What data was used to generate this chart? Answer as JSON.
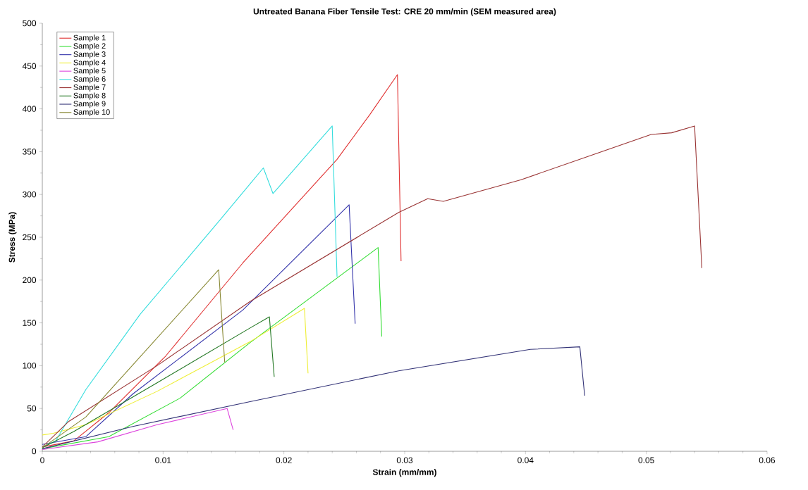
{
  "chart_data": {
    "type": "line",
    "title": "Untreated Banana Fiber Tensile Test: CRE 20 mm/min (SEM measured area)",
    "xlabel": "Strain (mm/mm)",
    "ylabel": "Stress (MPa)",
    "xlim": [
      0,
      0.06
    ],
    "ylim": [
      0,
      500
    ],
    "xticks": [
      0,
      0.01,
      0.02,
      0.03,
      0.04,
      0.05,
      0.06
    ],
    "yticks": [
      0,
      50,
      100,
      150,
      200,
      250,
      300,
      350,
      400,
      450,
      500
    ],
    "legend": "top left",
    "grid": false,
    "marker": "none",
    "line_style": "solid",
    "series": [
      {
        "name": "Sample 1",
        "color": "#e03030",
        "x": [
          0,
          0.0026,
          0.0055,
          0.0102,
          0.0166,
          0.0244,
          0.0271,
          0.0294,
          0.0297
        ],
        "values": [
          5,
          12,
          45,
          111,
          220,
          341,
          393,
          440,
          222
        ]
      },
      {
        "name": "Sample 2",
        "color": "#33dd33",
        "x": [
          0,
          0.0055,
          0.0114,
          0.0172,
          0.0278,
          0.0281
        ],
        "values": [
          3,
          17,
          62,
          127,
          238,
          134
        ]
      },
      {
        "name": "Sample 3",
        "color": "#3333aa",
        "x": [
          0,
          0.0036,
          0.0075,
          0.0166,
          0.0254,
          0.0259
        ],
        "values": [
          8,
          17,
          67,
          165,
          288,
          149
        ]
      },
      {
        "name": "Sample 4",
        "color": "#eeee33",
        "x": [
          0,
          0.0009,
          0.0036,
          0.0095,
          0.0172,
          0.0217,
          0.022
        ],
        "values": [
          19,
          21,
          31,
          70,
          128,
          167,
          91
        ]
      },
      {
        "name": "Sample 5",
        "color": "#dd44dd",
        "x": [
          0,
          0.0046,
          0.0095,
          0.0153,
          0.0158
        ],
        "values": [
          2,
          11,
          31,
          50,
          25
        ]
      },
      {
        "name": "Sample 6",
        "color": "#33dddd",
        "x": [
          0,
          0.0011,
          0.0036,
          0.0081,
          0.0147,
          0.0183,
          0.0191,
          0.024,
          0.0244
        ],
        "values": [
          5,
          12,
          72,
          160,
          270,
          331,
          301,
          380,
          204
        ]
      },
      {
        "name": "Sample 7",
        "color": "#993333",
        "x": [
          0,
          0.0022,
          0.0095,
          0.0172,
          0.0295,
          0.0319,
          0.0332,
          0.0396,
          0.0463,
          0.0504,
          0.0521,
          0.054,
          0.0546
        ],
        "values": [
          5,
          35,
          100,
          175,
          279,
          295,
          292,
          317,
          350,
          370,
          372,
          380,
          214
        ]
      },
      {
        "name": "Sample 8",
        "color": "#227722",
        "x": [
          0,
          0.0026,
          0.0095,
          0.0172,
          0.0188,
          0.0192
        ],
        "values": [
          4,
          23,
          80,
          144,
          157,
          87
        ]
      },
      {
        "name": "Sample 9",
        "color": "#333377",
        "x": [
          0,
          0.0075,
          0.0172,
          0.0295,
          0.0404,
          0.0445,
          0.0449
        ],
        "values": [
          3,
          29,
          58,
          94,
          119,
          122,
          65
        ]
      },
      {
        "name": "Sample 10",
        "color": "#888833",
        "x": [
          0,
          0.0036,
          0.0146,
          0.0151
        ],
        "values": [
          4,
          40,
          212,
          104
        ]
      }
    ]
  }
}
